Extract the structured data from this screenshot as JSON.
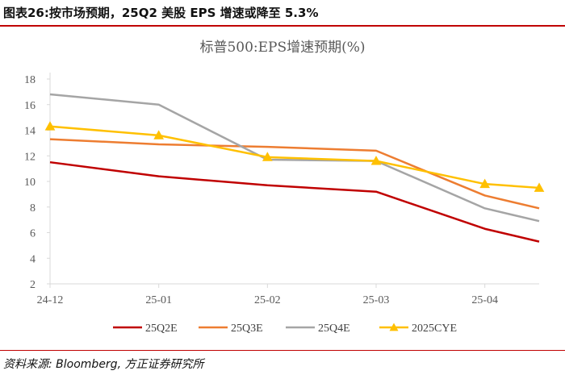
{
  "figure_title": "图表26:按市场预期，25Q2 美股 EPS 增速或降至 5.3%",
  "source_note": "资料来源: Bloomberg, 方正证券研究所",
  "chart_data": {
    "type": "line",
    "title": "标普500:EPS增速预期(%)",
    "xlabel": "",
    "ylabel": "",
    "x": [
      0,
      1.3,
      3,
      4.3,
      5.3,
      6.3,
      7.3,
      8.3,
      9.3,
      10.3,
      11.3,
      12.3,
      13.3,
      14.7
    ],
    "x_ticks": [
      {
        "label": "24-12",
        "pos": 0
      },
      {
        "label": "25-01",
        "pos": 3
      },
      {
        "label": "25-02",
        "pos": 6
      },
      {
        "label": "25-03",
        "pos": 9
      },
      {
        "label": "25-04",
        "pos": 12
      }
    ],
    "xlim": [
      0,
      13.5
    ],
    "ylim": [
      2,
      18
    ],
    "y_ticks": [
      2,
      4,
      6,
      8,
      10,
      12,
      14,
      16,
      18
    ],
    "grid": false,
    "legend_position": "bottom",
    "series": [
      {
        "name": "25Q2E",
        "color": "#c00000",
        "marker": "none",
        "points": [
          [
            0,
            11.5
          ],
          [
            3,
            10.4
          ],
          [
            6,
            9.7
          ],
          [
            9,
            9.2
          ],
          [
            12,
            6.3
          ],
          [
            13.5,
            5.3
          ]
        ]
      },
      {
        "name": "25Q3E",
        "color": "#ed7d31",
        "marker": "none",
        "points": [
          [
            0,
            13.3
          ],
          [
            3,
            12.9
          ],
          [
            6,
            12.7
          ],
          [
            9,
            12.4
          ],
          [
            12,
            8.9
          ],
          [
            13.5,
            7.9
          ]
        ]
      },
      {
        "name": "25Q4E",
        "color": "#a5a5a5",
        "marker": "none",
        "points": [
          [
            0,
            16.8
          ],
          [
            3,
            16.0
          ],
          [
            6,
            11.7
          ],
          [
            9,
            11.6
          ],
          [
            12,
            7.9
          ],
          [
            13.5,
            6.9
          ]
        ]
      },
      {
        "name": "2025CYE",
        "color": "#ffc000",
        "marker": "triangle",
        "points": [
          [
            0,
            14.3
          ],
          [
            3,
            13.6
          ],
          [
            6,
            11.9
          ],
          [
            9,
            11.6
          ],
          [
            12,
            9.8
          ],
          [
            13.5,
            9.5
          ]
        ]
      }
    ]
  }
}
